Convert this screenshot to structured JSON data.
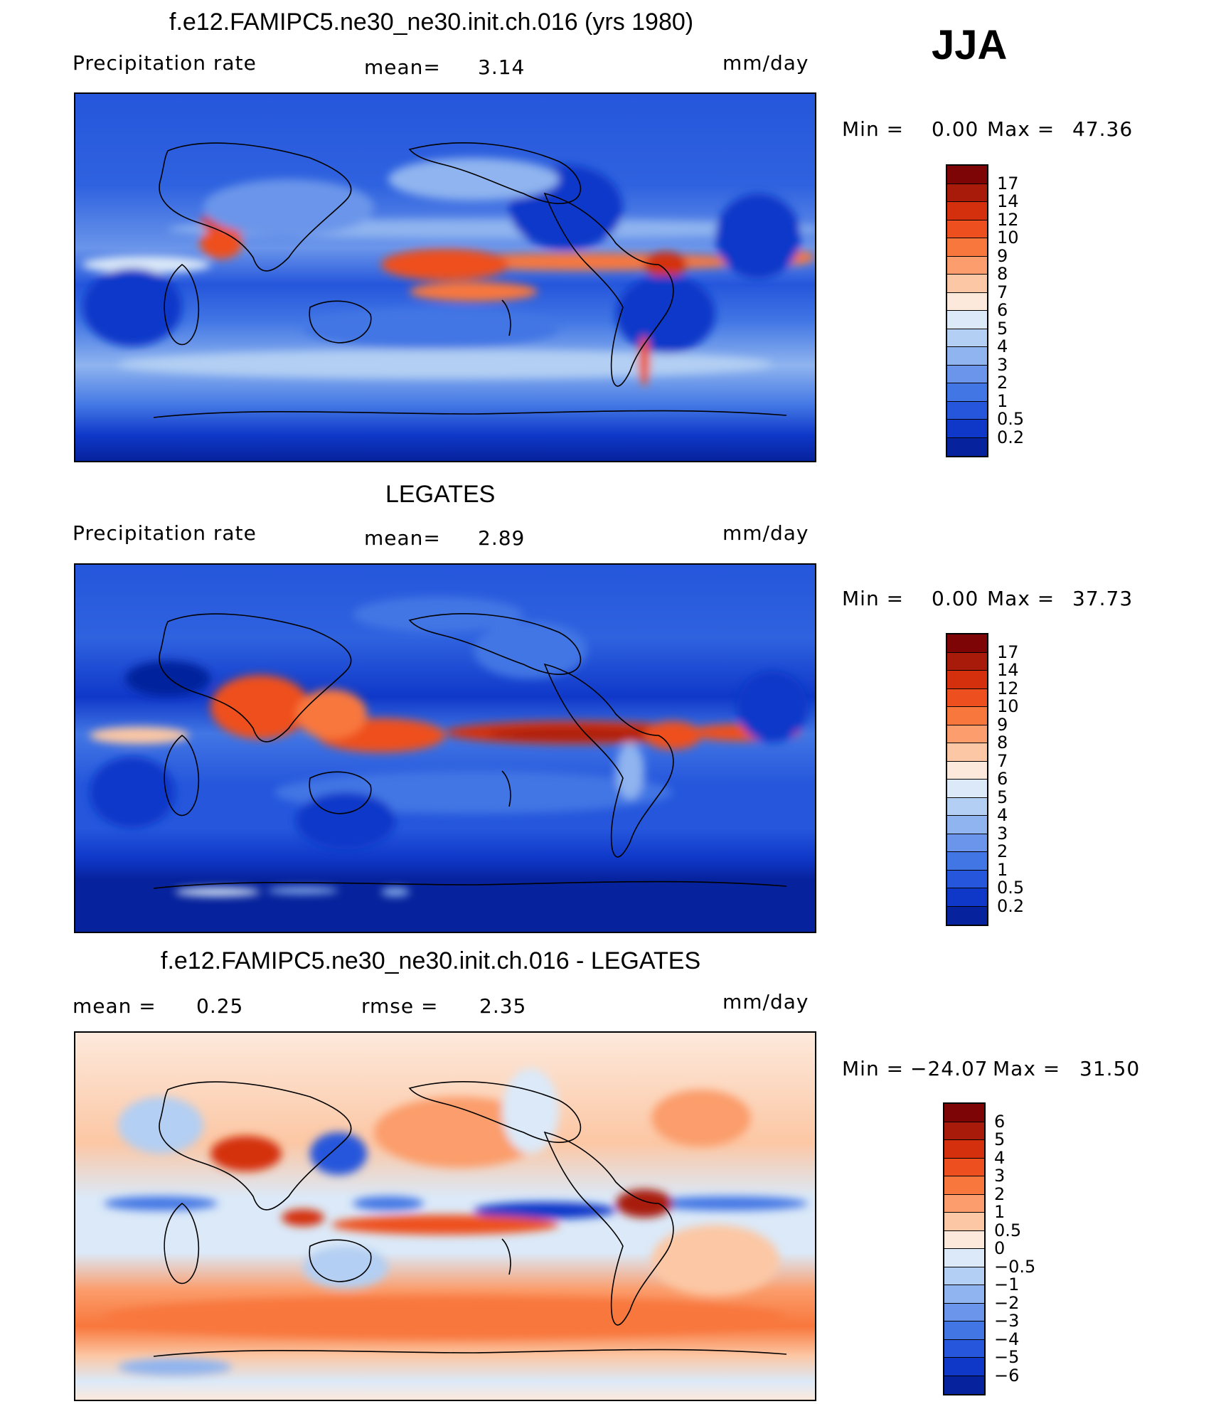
{
  "season": "JJA",
  "panels": [
    {
      "title": "f.e12.FAMIPC5.ne30_ne30.init.ch.016 (yrs 1980)",
      "left_label": "Precipitation rate",
      "mid_label": "mean=",
      "mid_value": "3.14",
      "right_label": "mm/day",
      "min_label": "Min =",
      "min_value": "0.00",
      "max_label": "Max =",
      "max_value": "47.36",
      "colorbar": {
        "labels": [
          "17",
          "14",
          "12",
          "10",
          "9",
          "8",
          "7",
          "6",
          "5",
          "4",
          "3",
          "2",
          "1",
          "0.5",
          "0.2"
        ],
        "colors": [
          "#7d0505",
          "#a81a0a",
          "#d4300e",
          "#ee4f1f",
          "#f8773c",
          "#fb9d6c",
          "#fcc7a4",
          "#fde9dc",
          "#dbe9f8",
          "#b3cff3",
          "#8fb4ef",
          "#6a95ea",
          "#4276e4",
          "#2556dc",
          "#0f38c9",
          "#06229c"
        ]
      }
    },
    {
      "title": "LEGATES",
      "left_label": "Precipitation rate",
      "mid_label": "mean=",
      "mid_value": "2.89",
      "right_label": "mm/day",
      "min_label": "Min =",
      "min_value": "0.00",
      "max_label": "Max =",
      "max_value": "37.73",
      "colorbar": {
        "labels": [
          "17",
          "14",
          "12",
          "10",
          "9",
          "8",
          "7",
          "6",
          "5",
          "4",
          "3",
          "2",
          "1",
          "0.5",
          "0.2"
        ],
        "colors": [
          "#7d0505",
          "#a81a0a",
          "#d4300e",
          "#ee4f1f",
          "#f8773c",
          "#fb9d6c",
          "#fcc7a4",
          "#fde9dc",
          "#dbe9f8",
          "#b3cff3",
          "#8fb4ef",
          "#6a95ea",
          "#4276e4",
          "#2556dc",
          "#0f38c9",
          "#06229c"
        ]
      }
    },
    {
      "title": "f.e12.FAMIPC5.ne30_ne30.init.ch.016 - LEGATES",
      "left_label": "mean =",
      "left_value": "0.25",
      "mid_label": "rmse =",
      "mid_value": "2.35",
      "right_label": "mm/day",
      "min_label": "Min =",
      "min_value": "−24.07",
      "max_label": "Max =",
      "max_value": "31.50",
      "colorbar": {
        "labels": [
          "6",
          "5",
          "4",
          "3",
          "2",
          "1",
          "0.5",
          "0",
          "−0.5",
          "−1",
          "−2",
          "−3",
          "−4",
          "−5",
          "−6"
        ],
        "colors": [
          "#7d0505",
          "#a81a0a",
          "#d4300e",
          "#ee4f1f",
          "#f8773c",
          "#fb9d6c",
          "#fcc7a4",
          "#fde9dc",
          "#dbe9f8",
          "#b3cff3",
          "#8fb4ef",
          "#6a95ea",
          "#4276e4",
          "#2556dc",
          "#0f38c9",
          "#06229c"
        ]
      }
    }
  ]
}
